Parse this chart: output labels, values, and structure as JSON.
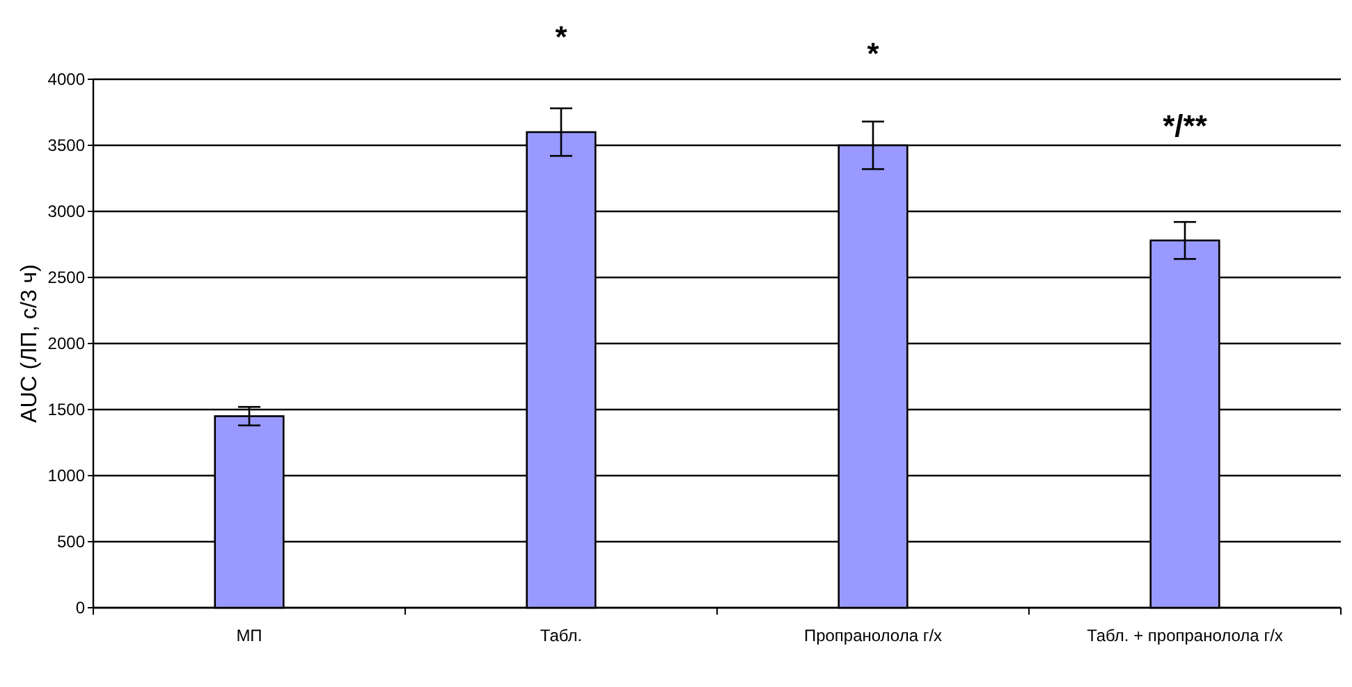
{
  "chart_data": {
    "type": "bar",
    "ylabel": "AUC (ЛП, с/3 ч)",
    "categories": [
      "МП",
      "Табл.",
      "Пропранолола г/х",
      "Табл. + пропранолола г/х"
    ],
    "values": [
      1450,
      3600,
      3500,
      2780
    ],
    "errors": [
      70,
      180,
      180,
      140
    ],
    "color": "#9999ff",
    "ylim": [
      0,
      4000
    ],
    "yticks": [
      0,
      500,
      1000,
      1500,
      2000,
      2500,
      3000,
      3500,
      4000
    ],
    "grid": "y",
    "annotations": [
      "*",
      "*",
      "*/**"
    ]
  }
}
